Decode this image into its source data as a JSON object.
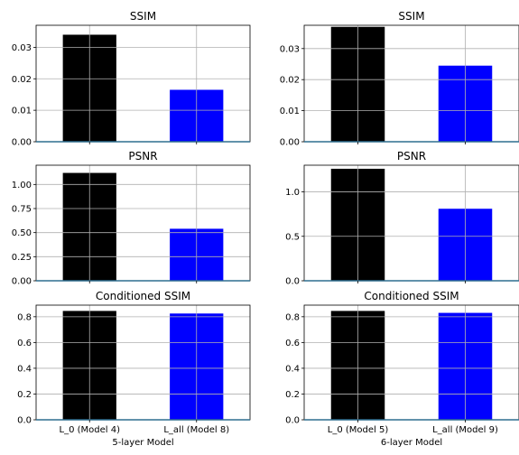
{
  "chart_data": [
    {
      "type": "bar",
      "title": "SSIM",
      "categories": [
        "L_0 (Model 4)",
        "L_all (Model 8)"
      ],
      "values": [
        0.034,
        0.0165
      ],
      "colors": [
        "#000000",
        "#0000ff"
      ],
      "ylim": [
        0,
        0.037
      ],
      "yticks": [
        0.0,
        0.01,
        0.02,
        0.03
      ],
      "ytick_labels": [
        "0.00",
        "0.01",
        "0.02",
        "0.03"
      ],
      "show_xticklabels": false,
      "xlabel": "",
      "grid": true
    },
    {
      "type": "bar",
      "title": "SSIM",
      "categories": [
        "L_0 (Model 5)",
        "L_all (Model 9)"
      ],
      "values": [
        0.037,
        0.0245
      ],
      "colors": [
        "#000000",
        "#0000ff"
      ],
      "ylim": [
        0,
        0.0375
      ],
      "yticks": [
        0.0,
        0.01,
        0.02,
        0.03
      ],
      "ytick_labels": [
        "0.00",
        "0.01",
        "0.02",
        "0.03"
      ],
      "show_xticklabels": false,
      "xlabel": "",
      "grid": true
    },
    {
      "type": "bar",
      "title": "PSNR",
      "categories": [
        "L_0 (Model 4)",
        "L_all (Model 8)"
      ],
      "values": [
        1.12,
        0.54
      ],
      "colors": [
        "#000000",
        "#0000ff"
      ],
      "ylim": [
        0,
        1.2
      ],
      "yticks": [
        0.0,
        0.25,
        0.5,
        0.75,
        1.0
      ],
      "ytick_labels": [
        "0.00",
        "0.25",
        "0.50",
        "0.75",
        "1.00"
      ],
      "show_xticklabels": false,
      "xlabel": "",
      "grid": true
    },
    {
      "type": "bar",
      "title": "PSNR",
      "categories": [
        "L_0 (Model 5)",
        "L_all (Model 9)"
      ],
      "values": [
        1.26,
        0.81
      ],
      "colors": [
        "#000000",
        "#0000ff"
      ],
      "ylim": [
        0,
        1.3
      ],
      "yticks": [
        0.0,
        0.5,
        1.0
      ],
      "ytick_labels": [
        "0.0",
        "0.5",
        "1.0"
      ],
      "show_xticklabels": false,
      "xlabel": "",
      "grid": true
    },
    {
      "type": "bar",
      "title": "Conditioned SSIM",
      "categories": [
        "L_0 (Model 4)",
        "L_all (Model 8)"
      ],
      "values": [
        0.845,
        0.825
      ],
      "colors": [
        "#000000",
        "#0000ff"
      ],
      "ylim": [
        0,
        0.89
      ],
      "yticks": [
        0.0,
        0.2,
        0.4,
        0.6,
        0.8
      ],
      "ytick_labels": [
        "0.0",
        "0.2",
        "0.4",
        "0.6",
        "0.8"
      ],
      "show_xticklabels": true,
      "xlabel": "5-layer Model",
      "grid": true
    },
    {
      "type": "bar",
      "title": "Conditioned SSIM",
      "categories": [
        "L_0 (Model 5)",
        "L_all (Model 9)"
      ],
      "values": [
        0.845,
        0.83
      ],
      "colors": [
        "#000000",
        "#0000ff"
      ],
      "ylim": [
        0,
        0.89
      ],
      "yticks": [
        0.0,
        0.2,
        0.4,
        0.6,
        0.8
      ],
      "ytick_labels": [
        "0.0",
        "0.2",
        "0.4",
        "0.6",
        "0.8"
      ],
      "show_xticklabels": true,
      "xlabel": "6-layer Model",
      "grid": true
    }
  ],
  "style": {
    "grid_color": "#b0b0b0",
    "axis_color": "#000000",
    "baseline_color": "#2f6f8f"
  }
}
